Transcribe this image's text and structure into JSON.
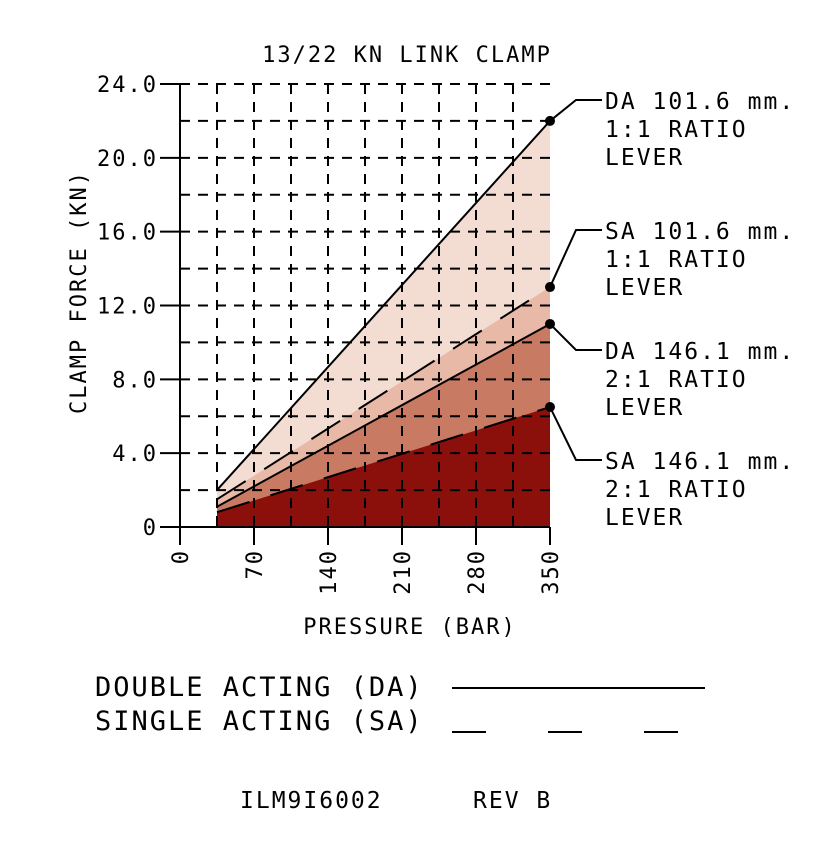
{
  "chart_data": {
    "type": "area",
    "title": "13/22 KN LINK CLAMP",
    "xlabel": "PRESSURE (BAR)",
    "ylabel": "CLAMP FORCE (KN)",
    "xlim": [
      0,
      350
    ],
    "ylim": [
      0,
      24
    ],
    "x_ticks": [
      0,
      70,
      140,
      210,
      280,
      350
    ],
    "x_tick_labels": [
      "0",
      "70",
      "140",
      "210",
      "280",
      "350"
    ],
    "y_ticks": [
      0,
      4,
      8,
      12,
      16,
      20,
      24
    ],
    "y_tick_labels": [
      "0",
      "4.0",
      "8.0",
      "12.0",
      "16.0",
      "20.0",
      "24.0"
    ],
    "grid": "dashed",
    "series": [
      {
        "name": "DA 101.6 mm. 1:1 RATIO LEVER",
        "line": "solid",
        "fill": "#f3dcd2",
        "x": [
          35,
          350
        ],
        "y": [
          2.0,
          22.0
        ]
      },
      {
        "name": "SA 101.6 mm. 1:1 RATIO LEVER",
        "line": "dashed",
        "fill": "#e8b9a6",
        "x": [
          35,
          350
        ],
        "y": [
          1.5,
          13.0
        ]
      },
      {
        "name": "DA 146.1 mm. 2:1 RATIO LEVER",
        "line": "solid",
        "fill": "#c97a63",
        "x": [
          35,
          350
        ],
        "y": [
          1.1,
          11.0
        ]
      },
      {
        "name": "SA 146.1 mm. 2:1 RATIO LEVER",
        "line": "dashed",
        "fill": "#8b0f0a",
        "x": [
          35,
          350
        ],
        "y": [
          0.8,
          6.5
        ]
      }
    ],
    "annotations": [
      {
        "series": 0,
        "lines": [
          "DA 101.6 mm.",
          "1:1 RATIO",
          "LEVER"
        ]
      },
      {
        "series": 1,
        "lines": [
          "SA 101.6 mm.",
          "1:1 RATIO",
          "LEVER"
        ]
      },
      {
        "series": 2,
        "lines": [
          "DA 146.1 mm.",
          "2:1 RATIO",
          "LEVER"
        ]
      },
      {
        "series": 3,
        "lines": [
          "SA 146.1 mm.",
          "2:1 RATIO",
          "LEVER"
        ]
      }
    ]
  },
  "legend": {
    "double_acting": "DOUBLE ACTING (DA)",
    "single_acting": "SINGLE ACTING (SA)"
  },
  "footer": {
    "drawing_number": "ILM9I6002",
    "revision": "REV B"
  }
}
